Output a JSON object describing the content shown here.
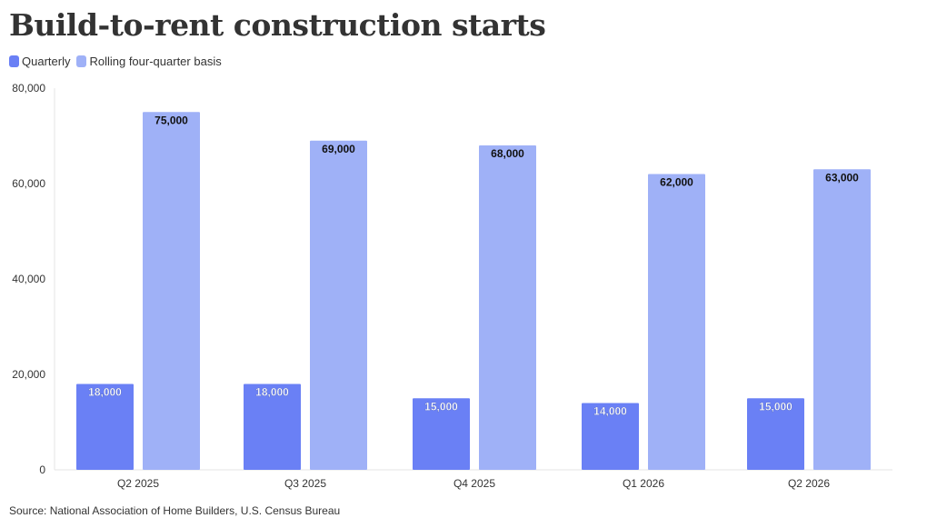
{
  "colors": {
    "quarterly": "#6a80f5",
    "rolling": "#9fb1f7",
    "grid": "#e6e6e6",
    "text": "#333333"
  },
  "legend": [
    {
      "label": "Quarterly",
      "color_key": "quarterly"
    },
    {
      "label": "Rolling four-quarter basis",
      "color_key": "rolling"
    }
  ],
  "source": "Source: National Association of Home Builders, U.S. Census Bureau",
  "chart_data": {
    "type": "bar",
    "title": "Build-to-rent construction starts",
    "categories": [
      "Q2 2025",
      "Q3 2025",
      "Q4 2025",
      "Q1 2026",
      "Q2 2026"
    ],
    "series": [
      {
        "name": "Quarterly",
        "values": [
          18000,
          18000,
          15000,
          14000,
          15000
        ],
        "labels": [
          "18,000",
          "18,000",
          "15,000",
          "14,000",
          "15,000"
        ]
      },
      {
        "name": "Rolling four-quarter basis",
        "values": [
          75000,
          69000,
          68000,
          62000,
          63000
        ],
        "labels": [
          "75,000",
          "69,000",
          "68,000",
          "62,000",
          "63,000"
        ]
      }
    ],
    "yticks": [
      0,
      20000,
      40000,
      60000,
      80000
    ],
    "ytick_labels": [
      "0",
      "20,000",
      "40,000",
      "60,000",
      "80,000"
    ],
    "ylim": [
      0,
      80000
    ],
    "xlabel": "",
    "ylabel": "",
    "grid": false,
    "legend_position": "top-left"
  }
}
